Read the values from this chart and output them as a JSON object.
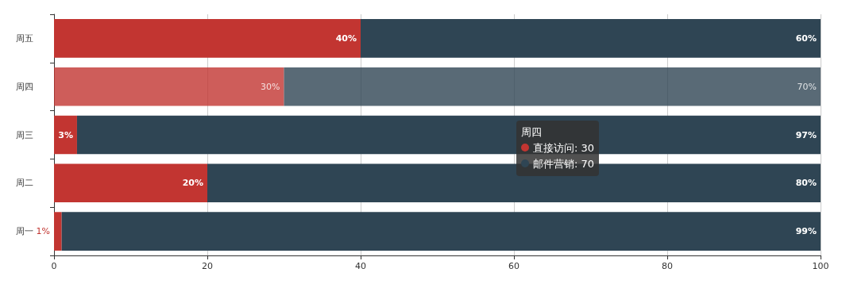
{
  "chart_data": {
    "type": "bar",
    "orientation": "horizontal",
    "stacked": true,
    "categories": [
      "周五",
      "周四",
      "周三",
      "周二",
      "周一"
    ],
    "series": [
      {
        "name": "直接访问",
        "color": "#c23531",
        "values": [
          40,
          30,
          3,
          20,
          1
        ],
        "value_labels": [
          "40%",
          "30%",
          "3%",
          "20%",
          "1%"
        ]
      },
      {
        "name": "邮件营销",
        "color": "#2f4554",
        "values": [
          60,
          70,
          97,
          80,
          99
        ],
        "value_labels": [
          "60%",
          "70%",
          "97%",
          "80%",
          "99%"
        ]
      }
    ],
    "annotations": [
      "周四",
      ": 30",
      ": 70"
    ],
    "xlim": [
      0,
      100
    ],
    "xticks": [
      0,
      20,
      40,
      60,
      80,
      100
    ],
    "grid": "x",
    "legend": "right"
  }
}
